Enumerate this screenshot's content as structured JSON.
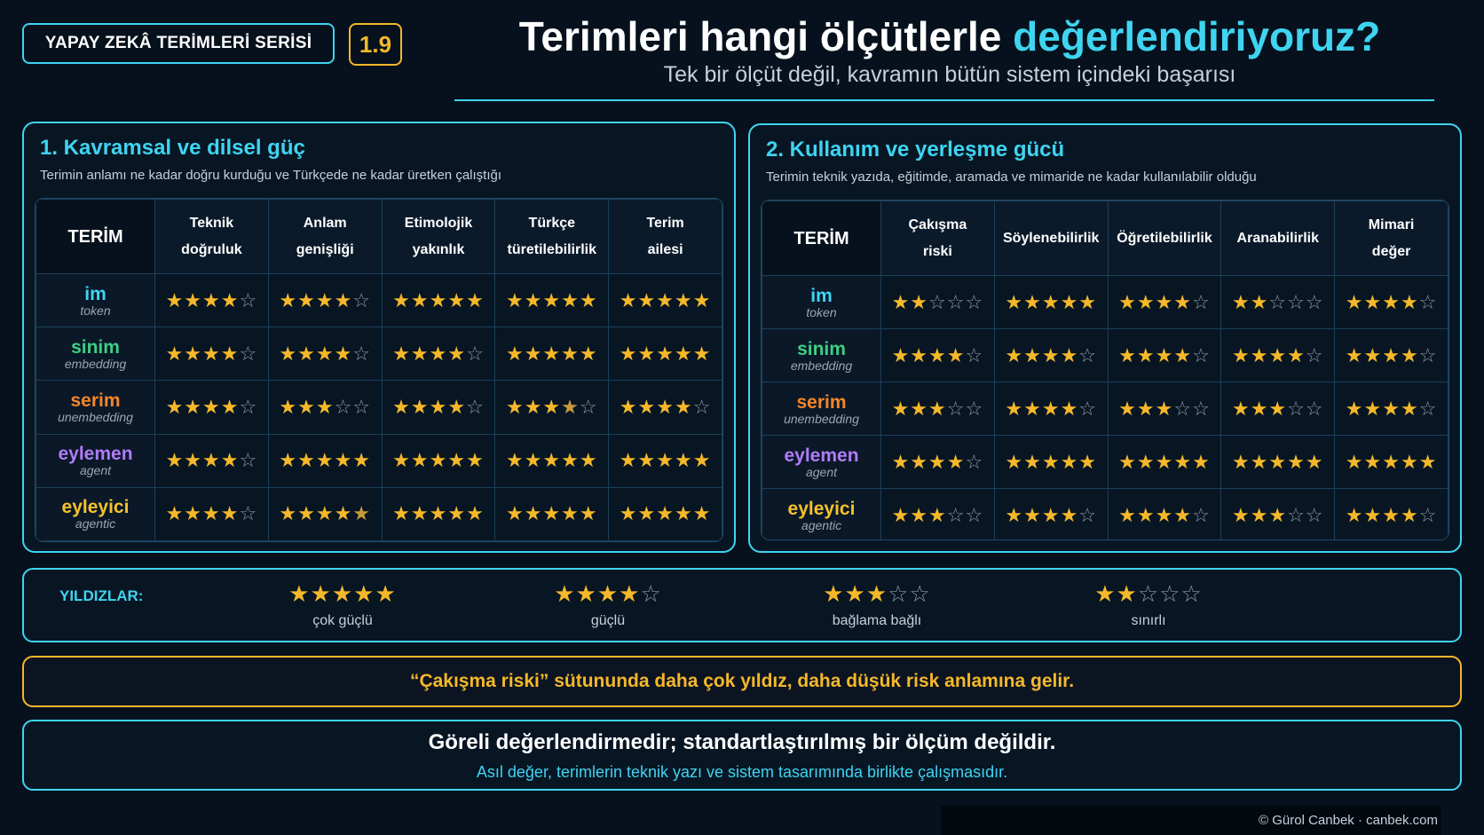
{
  "header": {
    "series_label": "YAPAY ZEKÂ TERİMLERİ SERİSİ",
    "number": "1.9",
    "title_main": "Terimleri hangi ölçütlerle ",
    "title_highlight": "değerlendiriyoruz?",
    "subtitle": "Tek bir ölçüt değil, kavramın bütün sistem içindeki başarısı"
  },
  "colors": {
    "accent": "#3fd4f0",
    "gold": "#f5b82a",
    "background": "#06111d",
    "term_im": "#3fd4f0",
    "term_sinim": "#3ecf82",
    "term_serim": "#f4862a",
    "term_eylemen": "#b07cf7",
    "term_eyleyici": "#f5c22a"
  },
  "terms": [
    {
      "name": "im",
      "sub": "token"
    },
    {
      "name": "sinim",
      "sub": "embedding"
    },
    {
      "name": "serim",
      "sub": "unembedding"
    },
    {
      "name": "eylemen",
      "sub": "agent"
    },
    {
      "name": "eyleyici",
      "sub": "agentic"
    }
  ],
  "panel1": {
    "title": "1. Kavramsal ve dilsel güç",
    "description": "Terimin anlamı ne kadar doğru kurduğu ve Türkçede ne kadar üretken çalıştığı",
    "term_header": "TERİM",
    "columns": [
      [
        "Teknik",
        "doğruluk"
      ],
      [
        "Anlam",
        "genişliği"
      ],
      [
        "Etimolojik",
        "yakınlık"
      ],
      [
        "Türkçe",
        "türetilebilirlik"
      ],
      [
        "Terim",
        "ailesi"
      ]
    ],
    "ratings": [
      [
        4,
        4,
        5,
        5,
        5
      ],
      [
        4,
        4,
        4,
        5,
        5
      ],
      [
        4,
        3,
        4,
        3.5,
        4
      ],
      [
        4,
        5,
        5,
        5,
        5
      ],
      [
        4,
        4.5,
        5,
        5,
        5
      ]
    ]
  },
  "panel2": {
    "title": "2. Kullanım ve yerleşme gücü",
    "description": "Terimin teknik yazıda, eğitimde, aramada ve mimaride ne kadar kullanılabilir olduğu",
    "term_header": "TERİM",
    "columns": [
      [
        "Çakışma",
        "riski"
      ],
      [
        "Söylenebilirlik"
      ],
      [
        "Öğretilebilirlik"
      ],
      [
        "Aranabilirlik"
      ],
      [
        "Mimari",
        "değer"
      ]
    ],
    "ratings": [
      [
        2,
        5,
        4,
        2,
        4
      ],
      [
        4,
        4,
        4,
        4,
        4
      ],
      [
        3,
        4,
        3,
        3,
        4
      ],
      [
        4,
        5,
        5,
        5,
        5
      ],
      [
        3,
        4,
        4,
        3,
        4
      ]
    ]
  },
  "legend": {
    "label": "YILDIZLAR:",
    "items": [
      {
        "stars": 5,
        "text": "çok güçlü"
      },
      {
        "stars": 4,
        "text": "güçlü"
      },
      {
        "stars": 3,
        "text": "bağlama bağlı"
      },
      {
        "stars": 2,
        "text": "sınırlı"
      }
    ]
  },
  "notes": {
    "conflict_note": "“Çakışma riski” sütununda daha çok yıldız, daha düşük risk anlamına gelir.",
    "relative_main": "Göreli değerlendirmedir; standartlaştırılmış bir ölçüm değildir.",
    "relative_sub": "Asıl değer, terimlerin teknik yazı ve sistem tasarımında birlikte çalışmasıdır."
  },
  "footer": {
    "copyright": "© Gürol Canbek · canbek.com"
  }
}
